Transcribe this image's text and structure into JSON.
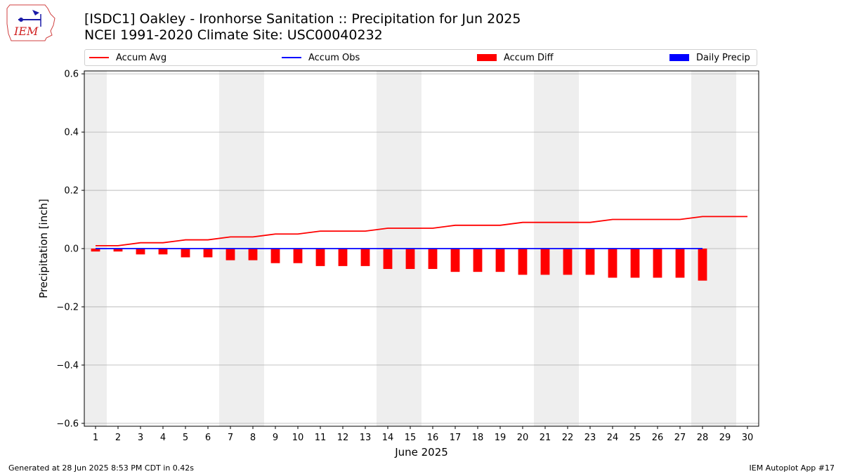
{
  "logo": {
    "text": "IEM"
  },
  "header": {
    "title_line1": "[ISDC1] Oakley - Ironhorse Sanitation :: Precipitation for Jun 2025",
    "title_line2": "NCEI 1991-2020 Climate Site: USC00040232"
  },
  "footer": {
    "left": "Generated at 28 Jun 2025 8:53 PM CDT in 0.42s",
    "right": "IEM Autoplot App #17"
  },
  "colors": {
    "accum_avg": "#ff0000",
    "accum_obs": "#0000ff",
    "accum_diff": "#ff0000",
    "daily_precip": "#0000ff",
    "weekend_shade": "#eeeeee",
    "grid": "#b0b0b0"
  },
  "chart_data": {
    "type": "bar",
    "title": "[ISDC1] Oakley - Ironhorse Sanitation :: Precipitation for Jun 2025",
    "subtitle": "NCEI 1991-2020 Climate Site: USC00040232",
    "xlabel": "June 2025",
    "ylabel": "Precipitation [inch]",
    "xlim": [
      0.5,
      30.5
    ],
    "ylim": [
      -0.61,
      0.61
    ],
    "x_ticks": [
      1,
      2,
      3,
      4,
      5,
      6,
      7,
      8,
      9,
      10,
      11,
      12,
      13,
      14,
      15,
      16,
      17,
      18,
      19,
      20,
      21,
      22,
      23,
      24,
      25,
      26,
      27,
      28,
      29,
      30
    ],
    "y_ticks": [
      -0.6,
      -0.4,
      -0.2,
      0.0,
      0.2,
      0.4,
      0.6
    ],
    "y_tick_labels": [
      "−0.6",
      "−0.4",
      "−0.2",
      "0.0",
      "0.2",
      "0.4",
      "0.6"
    ],
    "grid": "horizontal",
    "legend_position": "top",
    "legend": [
      "Accum Avg",
      "Accum Obs",
      "Accum Diff",
      "Daily Precip"
    ],
    "weekend_spans": [
      [
        0.5,
        1.5
      ],
      [
        6.5,
        8.5
      ],
      [
        13.5,
        15.5
      ],
      [
        20.5,
        22.5
      ],
      [
        27.5,
        29.5
      ]
    ],
    "series": [
      {
        "name": "Accum Avg",
        "kind": "line",
        "x": [
          1,
          2,
          3,
          4,
          5,
          6,
          7,
          8,
          9,
          10,
          11,
          12,
          13,
          14,
          15,
          16,
          17,
          18,
          19,
          20,
          21,
          22,
          23,
          24,
          25,
          26,
          27,
          28,
          29,
          30
        ],
        "values": [
          0.01,
          0.01,
          0.02,
          0.02,
          0.03,
          0.03,
          0.04,
          0.04,
          0.05,
          0.05,
          0.06,
          0.06,
          0.06,
          0.07,
          0.07,
          0.07,
          0.08,
          0.08,
          0.08,
          0.09,
          0.09,
          0.09,
          0.09,
          0.1,
          0.1,
          0.1,
          0.1,
          0.11,
          0.11,
          0.11
        ]
      },
      {
        "name": "Accum Obs",
        "kind": "line",
        "x": [
          1,
          2,
          3,
          4,
          5,
          6,
          7,
          8,
          9,
          10,
          11,
          12,
          13,
          14,
          15,
          16,
          17,
          18,
          19,
          20,
          21,
          22,
          23,
          24,
          25,
          26,
          27,
          28
        ],
        "values": [
          0,
          0,
          0,
          0,
          0,
          0,
          0,
          0,
          0,
          0,
          0,
          0,
          0,
          0,
          0,
          0,
          0,
          0,
          0,
          0,
          0,
          0,
          0,
          0,
          0,
          0,
          0,
          0
        ]
      },
      {
        "name": "Accum Diff",
        "kind": "bar",
        "x": [
          1,
          2,
          3,
          4,
          5,
          6,
          7,
          8,
          9,
          10,
          11,
          12,
          13,
          14,
          15,
          16,
          17,
          18,
          19,
          20,
          21,
          22,
          23,
          24,
          25,
          26,
          27,
          28
        ],
        "values": [
          -0.01,
          -0.01,
          -0.02,
          -0.02,
          -0.03,
          -0.03,
          -0.04,
          -0.04,
          -0.05,
          -0.05,
          -0.06,
          -0.06,
          -0.06,
          -0.07,
          -0.07,
          -0.07,
          -0.08,
          -0.08,
          -0.08,
          -0.09,
          -0.09,
          -0.09,
          -0.09,
          -0.1,
          -0.1,
          -0.1,
          -0.1,
          -0.11
        ]
      },
      {
        "name": "Daily Precip",
        "kind": "bar",
        "x": [
          1,
          2,
          3,
          4,
          5,
          6,
          7,
          8,
          9,
          10,
          11,
          12,
          13,
          14,
          15,
          16,
          17,
          18,
          19,
          20,
          21,
          22,
          23,
          24,
          25,
          26,
          27,
          28
        ],
        "values": [
          0,
          0,
          0,
          0,
          0,
          0,
          0,
          0,
          0,
          0,
          0,
          0,
          0,
          0,
          0,
          0,
          0,
          0,
          0,
          0,
          0,
          0,
          0,
          0,
          0,
          0,
          0,
          0
        ]
      }
    ]
  }
}
